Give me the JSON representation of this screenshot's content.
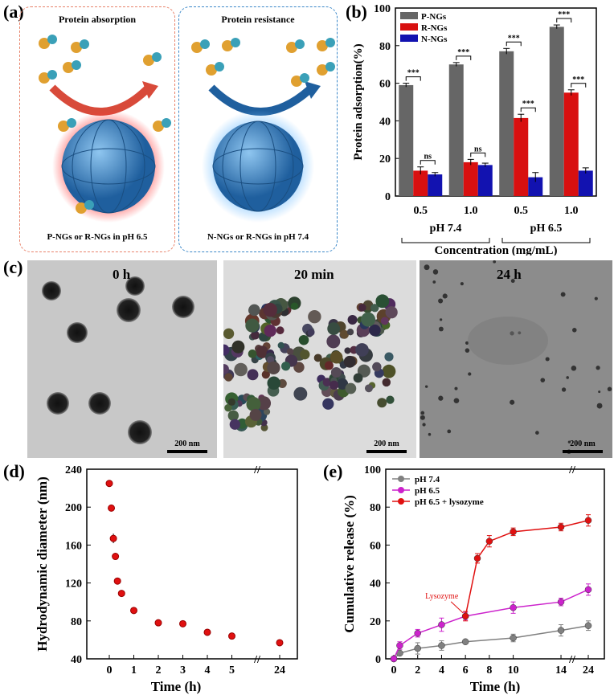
{
  "panels": {
    "a": {
      "label": "(a)",
      "left_title": "Protein absorption",
      "left_caption": "P-NGs or R-NGs in pH 6.5",
      "right_title": "Protein resistance",
      "right_caption": "N-NGs or R-NGs in pH 7.4",
      "colors": {
        "left_border": "#e8826a",
        "right_border": "#3a87c8",
        "left_glow": "#ff3b3b",
        "right_glow": "#7fc4ff",
        "sphere": "#2f7fc1"
      }
    },
    "b": {
      "label": "(b)"
    },
    "c": {
      "label": "(c)",
      "images": [
        {
          "time_label": "0 h",
          "scale": "200 nm"
        },
        {
          "time_label": "20 min",
          "scale": "200 nm"
        },
        {
          "time_label": "24 h",
          "scale": "200 nm"
        }
      ]
    },
    "d": {
      "label": "(d)"
    },
    "e": {
      "label": "(e)"
    }
  },
  "chart_data": [
    {
      "id": "b",
      "type": "bar",
      "ylabel": "Protein adsorption(%)",
      "xlabel": "Concentration (mg/mL)",
      "ylim": [
        0,
        100
      ],
      "yticks": [
        "0",
        "20",
        "40",
        "60",
        "80",
        "100"
      ],
      "categories": [
        "0.5",
        "1.0",
        "0.5",
        "1.0"
      ],
      "groups": [
        "pH 7.4",
        "pH 6.5"
      ],
      "series": [
        {
          "name": "P-NGs",
          "color": "#666666",
          "values": [
            59,
            70,
            77,
            90
          ],
          "errors": [
            1,
            1,
            1.5,
            1
          ]
        },
        {
          "name": "R-NGs",
          "color": "#d81010",
          "values": [
            13.5,
            18,
            41.5,
            55
          ],
          "errors": [
            2,
            1.5,
            2,
            1.5
          ]
        },
        {
          "name": "N-NGs",
          "color": "#1212b0",
          "values": [
            11.5,
            16.5,
            10,
            13.5
          ],
          "errors": [
            1,
            1,
            2.5,
            1.5
          ]
        }
      ],
      "significance": [
        {
          "category": 0,
          "pair": [
            "P-NGs",
            "R-NGs"
          ],
          "label": "***"
        },
        {
          "category": 0,
          "pair": [
            "R-NGs",
            "N-NGs"
          ],
          "label": "ns"
        },
        {
          "category": 1,
          "pair": [
            "P-NGs",
            "R-NGs"
          ],
          "label": "***"
        },
        {
          "category": 1,
          "pair": [
            "R-NGs",
            "N-NGs"
          ],
          "label": "ns"
        },
        {
          "category": 2,
          "pair": [
            "P-NGs",
            "R-NGs"
          ],
          "label": "***"
        },
        {
          "category": 2,
          "pair": [
            "R-NGs",
            "N-NGs"
          ],
          "label": "***"
        },
        {
          "category": 3,
          "pair": [
            "P-NGs",
            "R-NGs"
          ],
          "label": "***"
        },
        {
          "category": 3,
          "pair": [
            "R-NGs",
            "N-NGs"
          ],
          "label": "***"
        }
      ]
    },
    {
      "id": "d",
      "type": "scatter",
      "ylabel": "Hydrodynamic diameter (nm)",
      "xlabel": "Time (h)",
      "ylim": [
        40,
        240
      ],
      "yticks": [
        "40",
        "80",
        "120",
        "160",
        "200",
        "240"
      ],
      "xticks": [
        "0",
        "1",
        "2",
        "3",
        "4",
        "5",
        "24"
      ],
      "x_break": true,
      "color": "#e01010",
      "points": [
        {
          "x": 0,
          "y": 225,
          "err": 2
        },
        {
          "x": 0.0833,
          "y": 199,
          "err": 3
        },
        {
          "x": 0.167,
          "y": 167,
          "err": 5
        },
        {
          "x": 0.25,
          "y": 148,
          "err": 2
        },
        {
          "x": 0.333,
          "y": 122,
          "err": 3
        },
        {
          "x": 0.5,
          "y": 109,
          "err": 2
        },
        {
          "x": 1,
          "y": 91,
          "err": 1
        },
        {
          "x": 2,
          "y": 78,
          "err": 1
        },
        {
          "x": 3,
          "y": 77,
          "err": 1.5
        },
        {
          "x": 4,
          "y": 68,
          "err": 2
        },
        {
          "x": 5,
          "y": 64,
          "err": 1
        },
        {
          "x": 24,
          "y": 57,
          "err": 1
        }
      ]
    },
    {
      "id": "e",
      "type": "line",
      "ylabel": "Cumulative release (%)",
      "xlabel": "Time (h)",
      "ylim": [
        0,
        100
      ],
      "yticks": [
        "0",
        "20",
        "40",
        "60",
        "80",
        "100"
      ],
      "xticks": [
        "0",
        "2",
        "4",
        "6",
        "8",
        "10",
        "14",
        "24"
      ],
      "x_break": true,
      "annotation": "Lysozyme",
      "series": [
        {
          "name": "pH 7.4",
          "color": "#808080",
          "x": [
            0,
            0.5,
            2,
            4,
            6,
            10,
            14,
            24
          ],
          "y": [
            0,
            3,
            5.5,
            7,
            9,
            11,
            15,
            17.5
          ],
          "err": [
            0,
            1,
            3,
            2.5,
            1,
            2,
            3,
            2.5
          ]
        },
        {
          "name": "pH 6.5",
          "color": "#cc22cc",
          "x": [
            0,
            0.5,
            2,
            4,
            6,
            10,
            14,
            24
          ],
          "y": [
            0,
            7,
            13.5,
            18,
            22.5,
            27,
            30,
            36.5
          ],
          "err": [
            0,
            2,
            2,
            3.5,
            2,
            3,
            2,
            3
          ]
        },
        {
          "name": "pH 6.5 + lysozyme",
          "color": "#e01010",
          "x": [
            6,
            7,
            8,
            10,
            14,
            24
          ],
          "y": [
            22.5,
            53,
            62,
            67,
            69.5,
            73
          ],
          "err": [
            2.5,
            2.5,
            3,
            2,
            2,
            3
          ]
        }
      ]
    }
  ]
}
